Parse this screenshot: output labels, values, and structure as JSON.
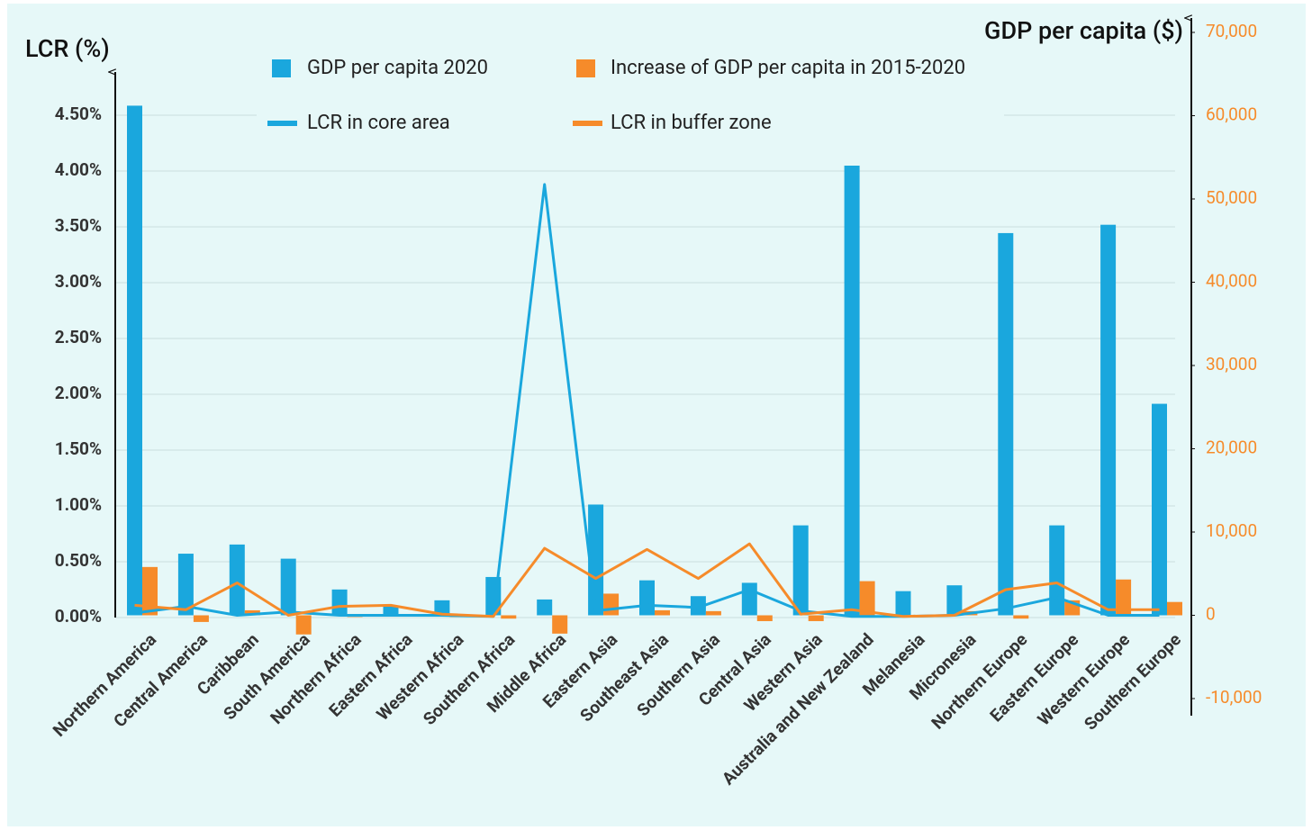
{
  "chart_data": {
    "type": "combo",
    "y_axis_label": "LCR (%)",
    "y2_axis_label": "GDP per capita ($)",
    "categories": [
      "Northern America",
      "Central America",
      "Caribbean",
      "South America",
      "Northern Africa",
      "Eastern Africa",
      "Western Africa",
      "Southern Africa",
      "Middle Africa",
      "Eastern Asia",
      "Southeast Asia",
      "Southern Asia",
      "Central Asia",
      "Western Asia",
      "Australia and New Zealand",
      "Melanesia",
      "Micronesia",
      "Northern Europe",
      "Eastern Europe",
      "Western Europe",
      "Southern Europe"
    ],
    "series": [
      {
        "name": "GDP per capita 2020",
        "type": "bar",
        "axis": "y2",
        "color": "#1aa7dd",
        "values": [
          61200,
          7400,
          8500,
          6800,
          3100,
          1100,
          1800,
          4600,
          1900,
          13300,
          4200,
          2300,
          3900,
          10800,
          54000,
          2900,
          3600,
          45900,
          10800,
          46900,
          25400
        ]
      },
      {
        "name": "Increase of GDP per capita in 2015-2020",
        "type": "bar",
        "axis": "y2",
        "color": "#f68b2a",
        "values": [
          5800,
          -800,
          600,
          -2300,
          -200,
          100,
          -200,
          -400,
          -2200,
          2600,
          600,
          500,
          -700,
          -700,
          4100,
          0,
          500,
          -400,
          1800,
          4300,
          1600
        ]
      },
      {
        "name": "LCR in core area",
        "type": "line",
        "color": "#1aa7dd",
        "values": [
          0.04,
          0.1,
          0.02,
          0.05,
          0.02,
          0.02,
          0.02,
          0.01,
          3.88,
          0.06,
          0.11,
          0.09,
          0.25,
          0.06,
          0.01,
          0.01,
          0.02,
          0.08,
          0.18,
          0.02,
          0.02
        ]
      },
      {
        "name": "LCR in buffer zone",
        "type": "line",
        "color": "#f68b2a",
        "values": [
          0.11,
          0.07,
          0.31,
          0.02,
          0.1,
          0.11,
          0.03,
          0.01,
          0.62,
          0.35,
          0.61,
          0.35,
          0.66,
          0.03,
          0.07,
          0.01,
          0.02,
          0.25,
          0.31,
          0.07,
          0.07
        ]
      }
    ],
    "ylim": [
      -0.726,
      5.242
    ],
    "yticks": [
      {
        "value": 0,
        "label": "0.00%"
      },
      {
        "value": 0.5,
        "label": "0.50%"
      },
      {
        "value": 1,
        "label": "1.00%"
      },
      {
        "value": 1.5,
        "label": "1.50%"
      },
      {
        "value": 2,
        "label": "2.00%"
      },
      {
        "value": 2.5,
        "label": "2.50%"
      },
      {
        "value": 3,
        "label": "3.00%"
      },
      {
        "value": 3.5,
        "label": "3.50%"
      },
      {
        "value": 4,
        "label": "4.00%"
      },
      {
        "value": 4.5,
        "label": "4.50%"
      }
    ],
    "y2lim": [
      -10000,
      70000
    ],
    "y2ticks": [
      {
        "value": -10000,
        "label": "-10,000"
      },
      0,
      {
        "value": 10000,
        "label": "10,000"
      },
      {
        "value": 20000,
        "label": "20,000"
      },
      {
        "value": 30000,
        "label": "30,000"
      },
      {
        "value": 40000,
        "label": "40,000"
      },
      {
        "value": 50000,
        "label": "50,000"
      },
      {
        "value": 60000,
        "label": "60,000"
      },
      {
        "value": 70000,
        "label": "70,000"
      }
    ],
    "y2_tick_color": "#f68b2a",
    "grid": true
  }
}
